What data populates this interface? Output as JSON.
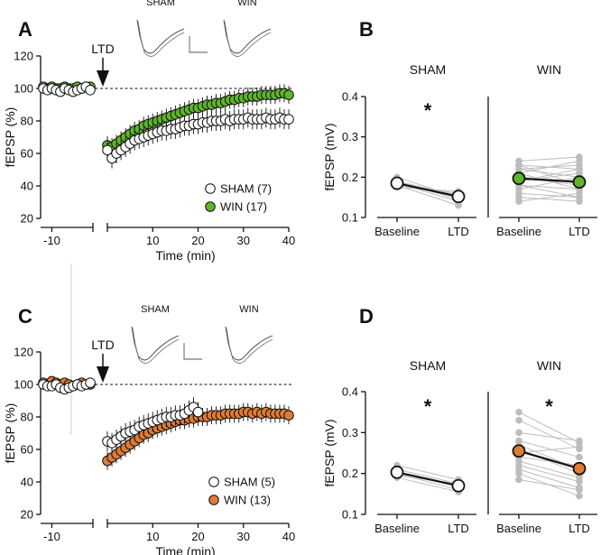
{
  "colors": {
    "sham_fill": "#ffffff",
    "win_ab": "#5fb52a",
    "win_cd": "#e07b34",
    "individual": "#bdbdbd",
    "ink": "#111111"
  },
  "chart_data": [
    {
      "panel": "A",
      "type": "scatter",
      "xlabel": "Time (min)",
      "ylabel": "fEPSP (%)",
      "xlim": [
        -12,
        40
      ],
      "ylim": [
        20,
        120
      ],
      "xticks": [
        -10,
        10,
        20,
        30,
        40
      ],
      "xtick_labels": [
        "-10",
        "10",
        "20",
        "30",
        "40"
      ],
      "yticks": [
        20,
        40,
        60,
        80,
        100,
        120
      ],
      "ytick_labels": [
        "20",
        "40",
        "60",
        "80",
        "100",
        "120"
      ],
      "baseline_ref": 100,
      "arrow_label": "LTD",
      "trace_labels": [
        "SHAM",
        "WIN"
      ],
      "legend": [
        "SHAM (7)",
        "WIN (17)"
      ],
      "series": [
        {
          "name": "SHAM",
          "color_key": "sham_fill",
          "baseline": {
            "x": [
              -12,
              -11,
              -10,
              -9,
              -8,
              -7,
              -6,
              -5,
              -4,
              -3,
              -2,
              -1
            ],
            "y": [
              100,
              99,
              100,
              99,
              98,
              100,
              99,
              98,
              99,
              100,
              101,
              99
            ]
          },
          "post": {
            "x": [
              0,
              1,
              2,
              3,
              4,
              5,
              6,
              7,
              8,
              9,
              10,
              11,
              12,
              13,
              14,
              15,
              16,
              17,
              18,
              19,
              20,
              21,
              22,
              23,
              24,
              25,
              26,
              27,
              28,
              29,
              30,
              31,
              32,
              33,
              34,
              35,
              36,
              37,
              38,
              39,
              40
            ],
            "y": [
              62,
              57,
              60,
              62,
              64,
              66,
              68,
              69,
              70,
              71,
              72,
              73,
              74,
              74,
              75,
              75,
              76,
              77,
              77,
              78,
              78,
              79,
              79,
              80,
              80,
              80,
              81,
              80,
              81,
              81,
              81,
              82,
              81,
              81,
              81,
              82,
              81,
              81,
              82,
              81,
              81
            ]
          }
        },
        {
          "name": "WIN",
          "color_key": "win_ab",
          "baseline": {
            "x": [
              -12,
              -11,
              -10,
              -9,
              -8,
              -7,
              -6,
              -5,
              -4,
              -3,
              -2,
              -1
            ],
            "y": [
              101,
              100,
              101,
              100,
              100,
              101,
              100,
              100,
              101,
              100,
              101,
              101
            ]
          },
          "post": {
            "x": [
              0,
              1,
              2,
              3,
              4,
              5,
              6,
              7,
              8,
              9,
              10,
              11,
              12,
              13,
              14,
              15,
              16,
              17,
              18,
              19,
              20,
              21,
              22,
              23,
              24,
              25,
              26,
              27,
              28,
              29,
              30,
              31,
              32,
              33,
              34,
              35,
              36,
              37,
              38,
              39,
              40
            ],
            "y": [
              65,
              64,
              66,
              68,
              70,
              72,
              74,
              75,
              77,
              78,
              79,
              80,
              81,
              82,
              83,
              84,
              85,
              86,
              87,
              88,
              88,
              89,
              90,
              90,
              91,
              91,
              92,
              93,
              93,
              94,
              94,
              95,
              95,
              95,
              96,
              96,
              96,
              96,
              97,
              97,
              96
            ]
          }
        }
      ]
    },
    {
      "panel": "B",
      "type": "scatter",
      "ylabel": "fEPSP (mV)",
      "ylim": [
        0.1,
        0.4
      ],
      "yticks": [
        0.1,
        0.2,
        0.3,
        0.4
      ],
      "ytick_labels": [
        "0.1",
        "0.2",
        "0.3",
        "0.4"
      ],
      "categories": [
        "Baseline",
        "LTD"
      ],
      "groups": [
        {
          "name": "SHAM",
          "color_key": "sham_fill",
          "significance": "*",
          "mean": [
            0.185,
            0.152
          ],
          "pairs": [
            [
              0.19,
              0.155
            ],
            [
              0.18,
              0.16
            ],
            [
              0.185,
              0.14
            ],
            [
              0.175,
              0.165
            ],
            [
              0.2,
              0.15
            ],
            [
              0.19,
              0.145
            ],
            [
              0.18,
              0.13
            ]
          ]
        },
        {
          "name": "WIN",
          "color_key": "win_ab",
          "significance": "",
          "mean": [
            0.197,
            0.188
          ],
          "pairs": [
            [
              0.24,
              0.25
            ],
            [
              0.23,
              0.22
            ],
            [
              0.22,
              0.2
            ],
            [
              0.21,
              0.24
            ],
            [
              0.2,
              0.18
            ],
            [
              0.19,
              0.21
            ],
            [
              0.18,
              0.17
            ],
            [
              0.17,
              0.2
            ],
            [
              0.16,
              0.15
            ],
            [
              0.15,
              0.14
            ],
            [
              0.14,
              0.16
            ],
            [
              0.2,
              0.19
            ],
            [
              0.22,
              0.23
            ],
            [
              0.18,
              0.15
            ],
            [
              0.19,
              0.22
            ],
            [
              0.21,
              0.17
            ],
            [
              0.23,
              0.18
            ]
          ]
        }
      ]
    },
    {
      "panel": "C",
      "type": "scatter",
      "xlabel": "Time (min)",
      "ylabel": "fEPSP (%)",
      "xlim": [
        -12,
        40
      ],
      "ylim": [
        20,
        120
      ],
      "xticks": [
        -10,
        10,
        20,
        30,
        40
      ],
      "xtick_labels": [
        "-10",
        "10",
        "20",
        "30",
        "40"
      ],
      "yticks": [
        20,
        40,
        60,
        80,
        100,
        120
      ],
      "ytick_labels": [
        "20",
        "40",
        "60",
        "80",
        "100",
        "120"
      ],
      "baseline_ref": 100,
      "arrow_label": "LTD",
      "trace_labels": [
        "SHAM",
        "WIN"
      ],
      "legend": [
        "SHAM (5)",
        "WIN (13)"
      ],
      "series": [
        {
          "name": "SHAM",
          "color_key": "sham_fill",
          "baseline": {
            "x": [
              -12,
              -11,
              -10,
              -9,
              -8,
              -7,
              -6,
              -5,
              -4,
              -3,
              -2,
              -1
            ],
            "y": [
              100,
              99,
              99,
              100,
              98,
              97,
              98,
              99,
              100,
              99,
              100,
              101
            ]
          },
          "post": {
            "x": [
              0,
              1,
              2,
              3,
              4,
              5,
              6,
              7,
              8,
              9,
              10,
              11,
              12,
              13,
              14,
              15,
              16,
              17,
              18,
              19,
              20
            ],
            "y": [
              65,
              64,
              66,
              68,
              70,
              71,
              72,
              74,
              75,
              76,
              77,
              78,
              79,
              80,
              80,
              81,
              81,
              82,
              84,
              86,
              83
            ]
          }
        },
        {
          "name": "WIN",
          "color_key": "win_cd",
          "baseline": {
            "x": [
              -12,
              -11,
              -10,
              -9,
              -8,
              -7,
              -6,
              -5,
              -4,
              -3,
              -2,
              -1
            ],
            "y": [
              101,
              100,
              102,
              101,
              100,
              101,
              100,
              99,
              100,
              101,
              100,
              100
            ]
          },
          "post": {
            "x": [
              0,
              1,
              2,
              3,
              4,
              5,
              6,
              7,
              8,
              9,
              10,
              11,
              12,
              13,
              14,
              15,
              16,
              17,
              18,
              19,
              20,
              21,
              22,
              23,
              24,
              25,
              26,
              27,
              28,
              29,
              30,
              31,
              32,
              33,
              34,
              35,
              36,
              37,
              38,
              39,
              40
            ],
            "y": [
              53,
              55,
              57,
              59,
              61,
              63,
              65,
              67,
              69,
              70,
              72,
              73,
              74,
              75,
              76,
              77,
              78,
              78,
              79,
              79,
              80,
              80,
              80,
              81,
              81,
              81,
              82,
              82,
              82,
              82,
              83,
              83,
              82,
              83,
              82,
              83,
              82,
              82,
              82,
              82,
              81
            ]
          }
        }
      ]
    },
    {
      "panel": "D",
      "type": "scatter",
      "ylabel": "fEPSP (mV)",
      "ylim": [
        0.1,
        0.4
      ],
      "yticks": [
        0.1,
        0.2,
        0.3,
        0.4
      ],
      "ytick_labels": [
        "0.1",
        "0.2",
        "0.3",
        "0.4"
      ],
      "categories": [
        "Baseline",
        "LTD"
      ],
      "groups": [
        {
          "name": "SHAM",
          "color_key": "sham_fill",
          "significance": "*",
          "mean": [
            0.203,
            0.17
          ],
          "pairs": [
            [
              0.22,
              0.185
            ],
            [
              0.21,
              0.175
            ],
            [
              0.2,
              0.16
            ],
            [
              0.195,
              0.175
            ],
            [
              0.19,
              0.155
            ]
          ]
        },
        {
          "name": "WIN",
          "color_key": "win_cd",
          "significance": "*",
          "mean": [
            0.255,
            0.212
          ],
          "pairs": [
            [
              0.35,
              0.275
            ],
            [
              0.33,
              0.26
            ],
            [
              0.3,
              0.28
            ],
            [
              0.28,
              0.24
            ],
            [
              0.27,
              0.21
            ],
            [
              0.26,
              0.2
            ],
            [
              0.25,
              0.265
            ],
            [
              0.24,
              0.22
            ],
            [
              0.23,
              0.19
            ],
            [
              0.22,
              0.18
            ],
            [
              0.21,
              0.165
            ],
            [
              0.2,
              0.145
            ],
            [
              0.185,
              0.16
            ]
          ]
        }
      ]
    }
  ]
}
